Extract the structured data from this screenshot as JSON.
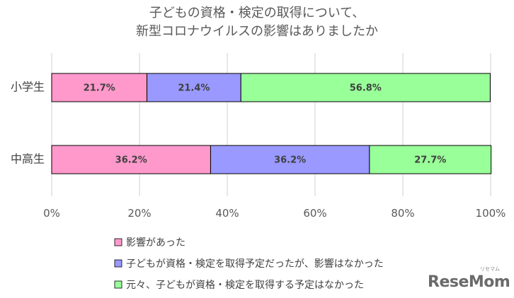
{
  "chart_data": {
    "type": "bar",
    "orientation": "horizontal",
    "stacked": true,
    "title_lines": [
      "子どもの資格・検定の取得について、",
      "新型コロナウイルスの影響はありましたか"
    ],
    "categories": [
      "小学生",
      "中高生"
    ],
    "series": [
      {
        "name": "影響があった",
        "color": "#ff99cc",
        "values": [
          21.7,
          36.2
        ],
        "labels": [
          "21.7%",
          "36.2%"
        ]
      },
      {
        "name": "子どもが資格・検定を取得予定だったが、影響はなかった",
        "color": "#9999ff",
        "values": [
          21.4,
          36.2
        ],
        "labels": [
          "21.4%",
          "36.2%"
        ]
      },
      {
        "name": "元々、子どもが資格・検定を取得する予定はなかった",
        "color": "#99ff99",
        "values": [
          56.8,
          27.7
        ],
        "labels": [
          "56.8%",
          "27.7%"
        ]
      }
    ],
    "x_ticks": [
      "0%",
      "20%",
      "40%",
      "60%",
      "80%",
      "100%"
    ],
    "xlim": [
      0,
      100
    ],
    "grid": true,
    "legend_position": "bottom"
  },
  "logo": {
    "text": "ReseMom",
    "sub": "リセマム"
  }
}
